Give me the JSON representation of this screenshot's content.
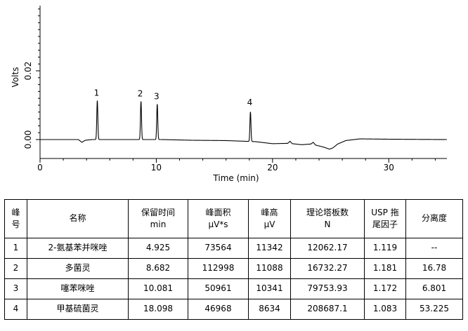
{
  "chart_data": {
    "type": "line",
    "title": "",
    "xlabel": "Time (min)",
    "ylabel": "Volts",
    "xlim": [
      0,
      35
    ],
    "ylim": [
      -0.002,
      0.04
    ],
    "xticks": [
      "0",
      "10",
      "20",
      "30"
    ],
    "yticks": [
      "0.00",
      "0.02"
    ],
    "grid": false,
    "baseline": [
      [
        0,
        0
      ],
      [
        3.3,
        0
      ],
      [
        3.6,
        -0.0008
      ],
      [
        3.9,
        -0.0002
      ],
      [
        4.5,
        0
      ],
      [
        10.5,
        0
      ],
      [
        13,
        -0.0002
      ],
      [
        16,
        -0.0003
      ],
      [
        18.5,
        -0.0006
      ],
      [
        20,
        -0.0012
      ],
      [
        21.3,
        -0.0011
      ],
      [
        21.5,
        -0.0005
      ],
      [
        21.7,
        -0.0012
      ],
      [
        22.5,
        -0.0015
      ],
      [
        23.3,
        -0.0013
      ],
      [
        23.5,
        -0.0008
      ],
      [
        23.7,
        -0.0016
      ],
      [
        24.4,
        -0.0022
      ],
      [
        24.9,
        -0.0028
      ],
      [
        25.2,
        -0.0024
      ],
      [
        25.6,
        -0.0013
      ],
      [
        26.3,
        -0.0003
      ],
      [
        27.5,
        0.0002
      ],
      [
        30,
        0.0001
      ],
      [
        35,
        0
      ]
    ],
    "peaks": [
      {
        "label": "1",
        "time": 4.925,
        "height": 0.0113
      },
      {
        "label": "2",
        "time": 8.682,
        "height": 0.0111
      },
      {
        "label": "3",
        "time": 10.081,
        "height": 0.0103
      },
      {
        "label": "4",
        "time": 18.098,
        "height": 0.0086
      }
    ]
  },
  "table": {
    "headers": [
      [
        "峰",
        "号"
      ],
      [
        "名称"
      ],
      [
        "保留时间",
        "min"
      ],
      [
        "峰面积",
        "μV*s"
      ],
      [
        "峰高",
        "μV"
      ],
      [
        "理论塔板数",
        "N"
      ],
      [
        "USP 拖",
        "尾因子"
      ],
      [
        "分离度"
      ]
    ],
    "rows": [
      [
        "1",
        "2-氨基苯并咪唑",
        "4.925",
        "73564",
        "11342",
        "12062.17",
        "1.119",
        "--"
      ],
      [
        "2",
        "多菌灵",
        "8.682",
        "112998",
        "11088",
        "16732.27",
        "1.181",
        "16.78"
      ],
      [
        "3",
        "噻苯咪唑",
        "10.081",
        "50961",
        "10341",
        "79753.93",
        "1.172",
        "6.801"
      ],
      [
        "4",
        "甲基硫菌灵",
        "18.098",
        "46968",
        "8634",
        "208687.1",
        "1.083",
        "53.225"
      ]
    ]
  }
}
